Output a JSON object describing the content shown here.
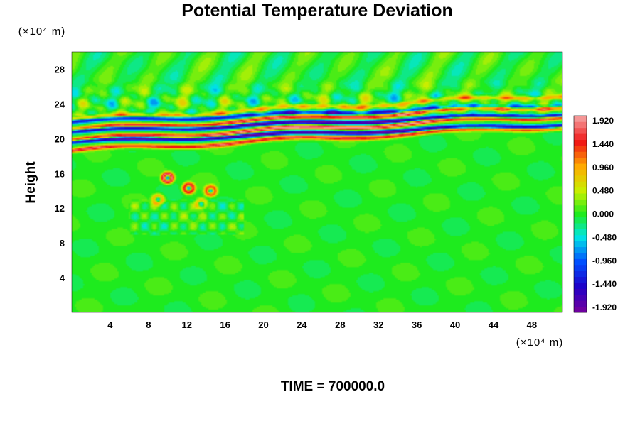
{
  "chart_data": {
    "type": "heatmap",
    "title": "Potential Temperature Deviation",
    "xlabel": "",
    "ylabel": "Height",
    "x_unit": "(×10⁴ m)",
    "y_unit": "(×10⁴ m)",
    "xlim": [
      0,
      51.2
    ],
    "ylim": [
      0,
      30
    ],
    "x_ticks": [
      4,
      8,
      12,
      16,
      20,
      24,
      28,
      32,
      36,
      40,
      44,
      48
    ],
    "y_ticks": [
      4,
      8,
      12,
      16,
      20,
      24,
      28
    ],
    "colorbar": {
      "min": -1.92,
      "max": 1.92,
      "levels": 33,
      "tick_labels": [
        "1.920",
        "1.440",
        "0.960",
        "0.480",
        "0.000",
        "-0.480",
        "-0.960",
        "-1.440",
        "-1.920"
      ]
    },
    "field_description": "Near-zero deviation everywhere except a banded layer of alternating strong positive (pink/red) and negative (purple/blue) values between heights ~20 and ~23, wavy perturbations above ~23, and a few small positive patches near x≈8–15, height≈12–16.",
    "bands": [
      {
        "y_center": 20.0,
        "value": 1.6
      },
      {
        "y_center": 20.6,
        "value": -1.9
      },
      {
        "y_center": 21.2,
        "value": 1.92
      },
      {
        "y_center": 21.8,
        "value": -1.8
      },
      {
        "y_center": 22.4,
        "value": 1.7
      },
      {
        "y_center": 22.9,
        "value": -1.3
      },
      {
        "y_center": 23.6,
        "value": 0.8
      }
    ],
    "blobs": [
      {
        "x": 10.0,
        "y": 15.5,
        "value": 1.9
      },
      {
        "x": 12.2,
        "y": 14.3,
        "value": 1.6
      },
      {
        "x": 14.5,
        "y": 14.0,
        "value": 1.3
      },
      {
        "x": 9.0,
        "y": 13.0,
        "value": 0.9
      },
      {
        "x": 13.5,
        "y": 12.5,
        "value": 0.7
      }
    ],
    "grid": false,
    "legend_placement": "right"
  },
  "footer": {
    "time_label": "TIME = 700000.0"
  }
}
